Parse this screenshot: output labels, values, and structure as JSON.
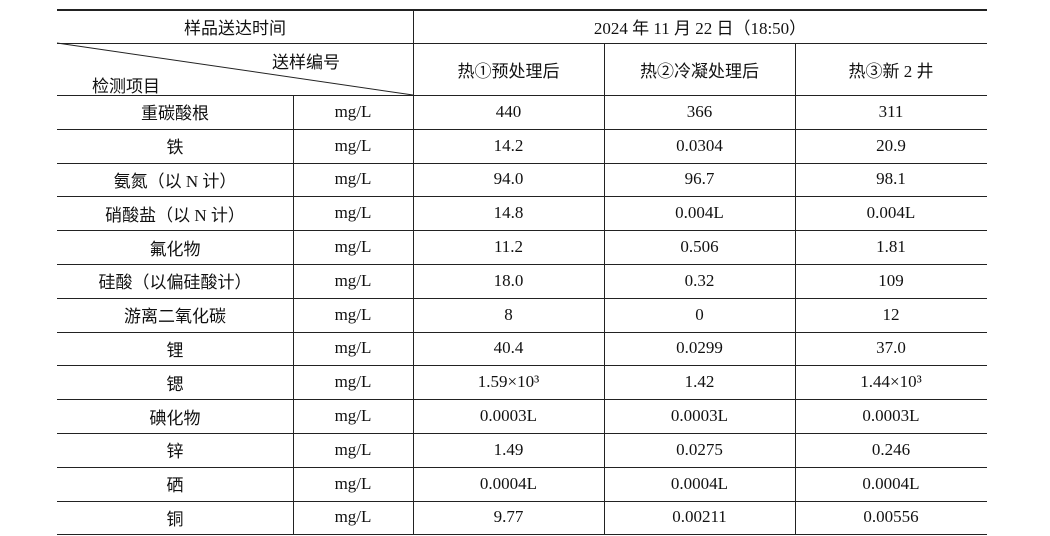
{
  "header": {
    "sample_time_label": "样品送达时间",
    "sample_time": "2024 年 11 月 22 日（18:50）",
    "sample_no_label": "送样编号",
    "item_label": "检测项目",
    "columns": [
      "热①预处理后",
      "热②冷凝处理后",
      "热③新 2 井"
    ]
  },
  "table": {
    "rows": [
      [
        "重碳酸根",
        "mg/L",
        "440",
        "366",
        "311"
      ],
      [
        "铁",
        "mg/L",
        "14.2",
        "0.0304",
        "20.9"
      ],
      [
        "氨氮（以 N 计）",
        "mg/L",
        "94.0",
        "96.7",
        "98.1"
      ],
      [
        "硝酸盐（以 N 计）",
        "mg/L",
        "14.8",
        "0.004L",
        "0.004L"
      ],
      [
        "氟化物",
        "mg/L",
        "11.2",
        "0.506",
        "1.81"
      ],
      [
        "硅酸（以偏硅酸计）",
        "mg/L",
        "18.0",
        "0.32",
        "109"
      ],
      [
        "游离二氧化碳",
        "mg/L",
        "8",
        "0",
        "12"
      ],
      [
        "锂",
        "mg/L",
        "40.4",
        "0.0299",
        "37.0"
      ],
      [
        "锶",
        "mg/L",
        "1.59×10³",
        "1.42",
        "1.44×10³"
      ],
      [
        "碘化物",
        "mg/L",
        "0.0003L",
        "0.0003L",
        "0.0003L"
      ],
      [
        "锌",
        "mg/L",
        "1.49",
        "0.0275",
        "0.246"
      ],
      [
        "硒",
        "mg/L",
        "0.0004L",
        "0.0004L",
        "0.0004L"
      ],
      [
        "铜",
        "mg/L",
        "9.77",
        "0.00211",
        "0.00556"
      ]
    ]
  }
}
